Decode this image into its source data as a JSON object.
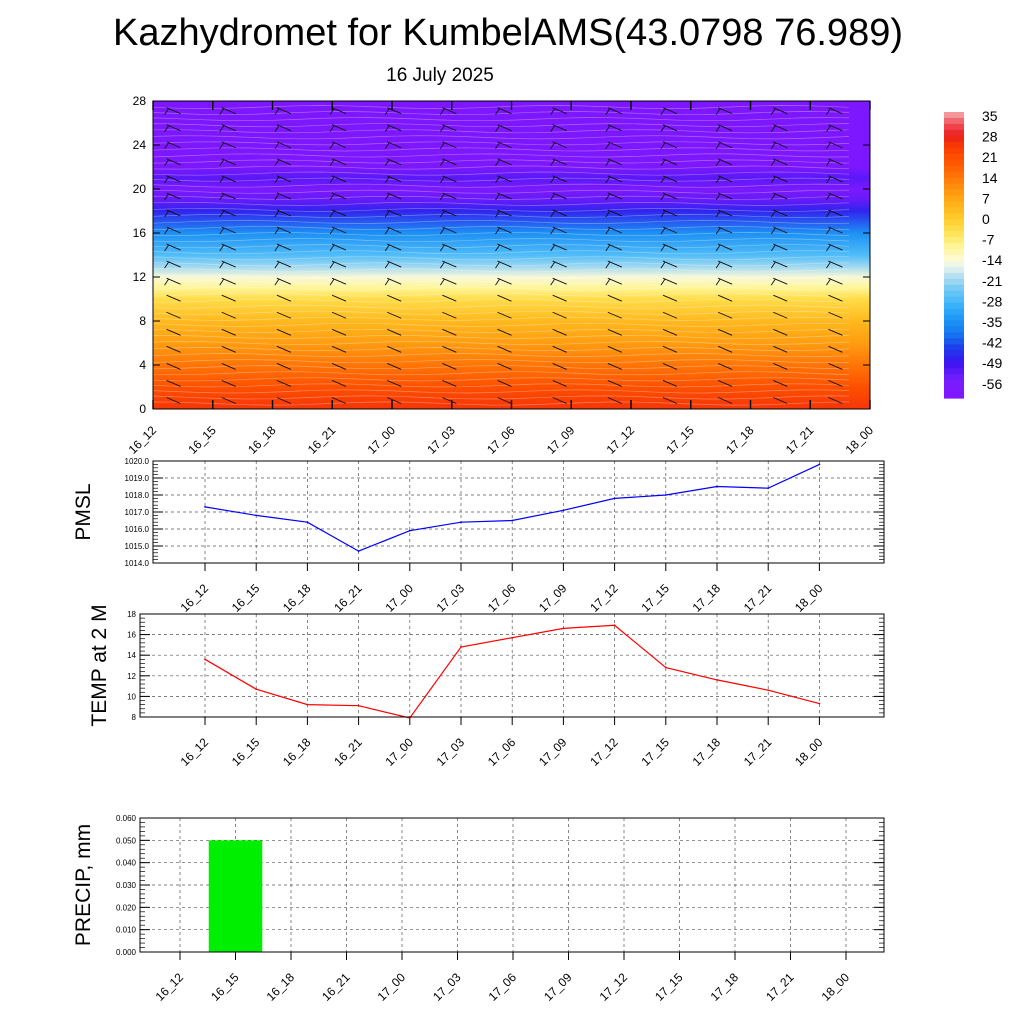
{
  "title": "Kazhydromet for KumbelAMS(43.0798 76.989)",
  "subtitle": "16 July 2025",
  "chart_data": [
    {
      "type": "heatmap",
      "title": "",
      "ylim": [
        0,
        28
      ],
      "y_ticks": [
        "0",
        "4",
        "8",
        "12",
        "16",
        "20",
        "24",
        "28"
      ],
      "x_ticks": [
        "16_12",
        "16_15",
        "16_18",
        "16_21",
        "17_00",
        "17_03",
        "17_06",
        "17_09",
        "17_12",
        "17_15",
        "17_18",
        "17_21",
        "18_00"
      ],
      "colorbar_labels": [
        "35",
        "28",
        "21",
        "14",
        "7",
        "0",
        "-7",
        "-14",
        "-21",
        "-28",
        "-35",
        "-42",
        "-49",
        "-56"
      ],
      "temperature_profile": [
        {
          "level": 0,
          "value": 25
        },
        {
          "level": 2,
          "value": 20
        },
        {
          "level": 4,
          "value": 14
        },
        {
          "level": 6,
          "value": 8
        },
        {
          "level": 8,
          "value": 3
        },
        {
          "level": 10,
          "value": -4
        },
        {
          "level": 11,
          "value": -10
        },
        {
          "level": 12,
          "value": -15
        },
        {
          "level": 13,
          "value": -22
        },
        {
          "level": 14,
          "value": -28
        },
        {
          "level": 16,
          "value": -36
        },
        {
          "level": 18,
          "value": -48
        },
        {
          "level": 19,
          "value": -54
        },
        {
          "level": 20,
          "value": -59
        },
        {
          "level": 21,
          "value": -53
        },
        {
          "level": 22,
          "value": -60
        },
        {
          "level": 28,
          "value": -60
        }
      ]
    },
    {
      "type": "line",
      "ylabel": "PMSL",
      "ylim": [
        1014,
        1020
      ],
      "y_ticks": [
        "1014.0",
        "1015.0",
        "1016.0",
        "1017.0",
        "1018.0",
        "1019.0",
        "1020.0"
      ],
      "categories": [
        "16_12",
        "16_15",
        "16_18",
        "16_21",
        "17_00",
        "17_03",
        "17_06",
        "17_09",
        "17_12",
        "17_15",
        "17_18",
        "17_21",
        "18_00"
      ],
      "values": [
        1017.3,
        1016.8,
        1016.4,
        1014.7,
        1015.9,
        1016.4,
        1016.5,
        1017.1,
        1017.8,
        1018.0,
        1018.5,
        1018.4,
        1019.8
      ],
      "line_color": "#0000ff"
    },
    {
      "type": "line",
      "ylabel": "TEMP at 2 M",
      "ylim": [
        8,
        18
      ],
      "y_ticks": [
        "8",
        "10",
        "12",
        "14",
        "16",
        "18"
      ],
      "categories": [
        "16_12",
        "16_15",
        "16_18",
        "16_21",
        "17_00",
        "17_03",
        "17_06",
        "17_09",
        "17_12",
        "17_15",
        "17_18",
        "17_21",
        "18_00"
      ],
      "values": [
        13.6,
        10.7,
        9.2,
        9.1,
        7.9,
        14.8,
        15.7,
        16.6,
        16.9,
        12.8,
        11.6,
        10.6,
        9.3
      ],
      "line_color": "#ff0000"
    },
    {
      "type": "bar",
      "ylabel": "PRECIP, mm",
      "ylim": [
        0,
        0.06
      ],
      "y_ticks": [
        "0.000",
        "0.010",
        "0.020",
        "0.030",
        "0.040",
        "0.050",
        "0.060"
      ],
      "categories": [
        "16_12",
        "16_15",
        "16_18",
        "16_21",
        "17_00",
        "17_03",
        "17_06",
        "17_09",
        "17_12",
        "17_15",
        "17_18",
        "17_21",
        "18_00"
      ],
      "values": [
        0,
        0.05,
        0,
        0,
        0,
        0,
        0,
        0,
        0,
        0,
        0,
        0,
        0
      ],
      "bar_color": "#00ee00"
    }
  ]
}
